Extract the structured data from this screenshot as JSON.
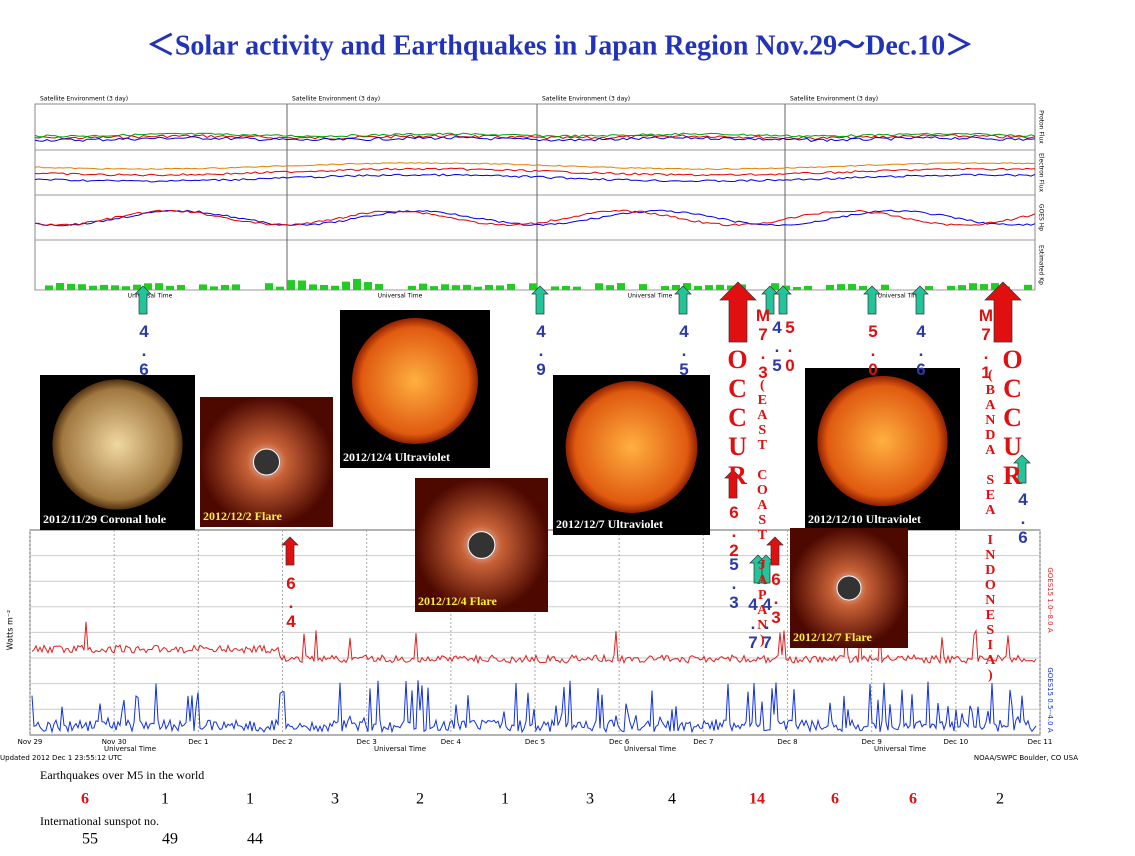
{
  "title": "＜Solar activity and Earthquakes  in Japan Region Nov.29～Dec.10＞",
  "top_panel": {
    "header": "Satellite Environment (3 day)",
    "axis": "Universal Time",
    "labels": [
      "Proton Flux",
      "Electron Flux",
      "GOES Hp",
      "Estimated Kp"
    ]
  },
  "images": [
    {
      "caption": "2012/11/29 Coronal hole"
    },
    {
      "caption": "2012/12/2 Flare"
    },
    {
      "caption": "2012/12/4 Ultraviolet"
    },
    {
      "caption": "2012/12/4 Flare"
    },
    {
      "caption": "2012/12/7 Ultraviolet"
    },
    {
      "caption": "2012/12/10 Ultraviolet"
    },
    {
      "caption": "2012/12/7 Flare"
    }
  ],
  "magnitude_labels": [
    {
      "text": "4.6",
      "color": "#2a3aa8"
    },
    {
      "text": "4.9",
      "color": "#2a3aa8"
    },
    {
      "text": "4.5",
      "color": "#2a3aa8"
    },
    {
      "text": "M7.3",
      "color": "#e01010"
    },
    {
      "text": "4.5",
      "color": "#2a3aa8"
    },
    {
      "text": "5.0",
      "color": "#e01010"
    },
    {
      "text": "5.0",
      "color": "#e01010"
    },
    {
      "text": "4.6",
      "color": "#2a3aa8"
    },
    {
      "text": "M7.1",
      "color": "#e01010"
    },
    {
      "text": "4.6",
      "color": "#2a3aa8"
    },
    {
      "text": "6.4",
      "color": "#e01010"
    },
    {
      "text": "6.2",
      "color": "#e01010"
    },
    {
      "text": "5.3",
      "color": "#2a3aa8"
    },
    {
      "text": "4.7",
      "color": "#2a3aa8"
    },
    {
      "text": "4.7",
      "color": "#2a3aa8"
    },
    {
      "text": "6.3",
      "color": "#e01010"
    }
  ],
  "notes": [
    "OCCUR",
    "(EAST COAST  JAPAN)",
    "OCCUR",
    "(BANDA SEA INDONESIA)"
  ],
  "xray": {
    "ylabel": "Watts m⁻²",
    "long": "GOES15 1.0--8.0 A",
    "short": "GOES15 0.5--4.0 A",
    "axis": "Universal Time",
    "updated": "Updated 2012 Dec  1 23:55:12 UTC",
    "source": "NOAA/SWPC Boulder, CO USA",
    "dates": [
      "Nov 29",
      "Nov 30",
      "Dec 1",
      "Dec 2",
      "Dec 3",
      "Dec 4",
      "Dec 5",
      "Dec 6",
      "Dec 7",
      "Dec 8",
      "Dec 9",
      "Dec 10",
      "Dec 11"
    ]
  },
  "earthquakes": {
    "label": "Earthquakes over M5 in the world",
    "counts": [
      6,
      1,
      1,
      3,
      2,
      1,
      3,
      4,
      14,
      6,
      6,
      2
    ]
  },
  "sunspots": {
    "label": "International sunspot no.",
    "numbers": [
      55,
      49,
      44
    ]
  }
}
